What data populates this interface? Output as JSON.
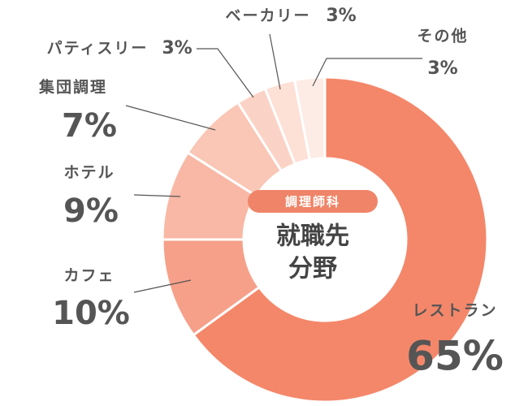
{
  "chart_data": {
    "type": "donut",
    "badge": "調理師科",
    "center_label": [
      "就職先",
      "分野"
    ],
    "categories": [
      "レストラン",
      "カフェ",
      "ホテル",
      "集団調理",
      "パティスリー",
      "ベーカリー",
      "その他"
    ],
    "values": [
      65,
      10,
      9,
      7,
      3,
      3,
      3
    ],
    "value_labels": [
      "65%",
      "10%",
      "9%",
      "7%",
      "3%",
      "3%",
      "3%"
    ],
    "colors": [
      "#f4876a",
      "#f6a089",
      "#f8b8a5",
      "#fac6b5",
      "#fbd3c6",
      "#fde0d6",
      "#fdece6"
    ],
    "badge_color": "#f08468"
  }
}
